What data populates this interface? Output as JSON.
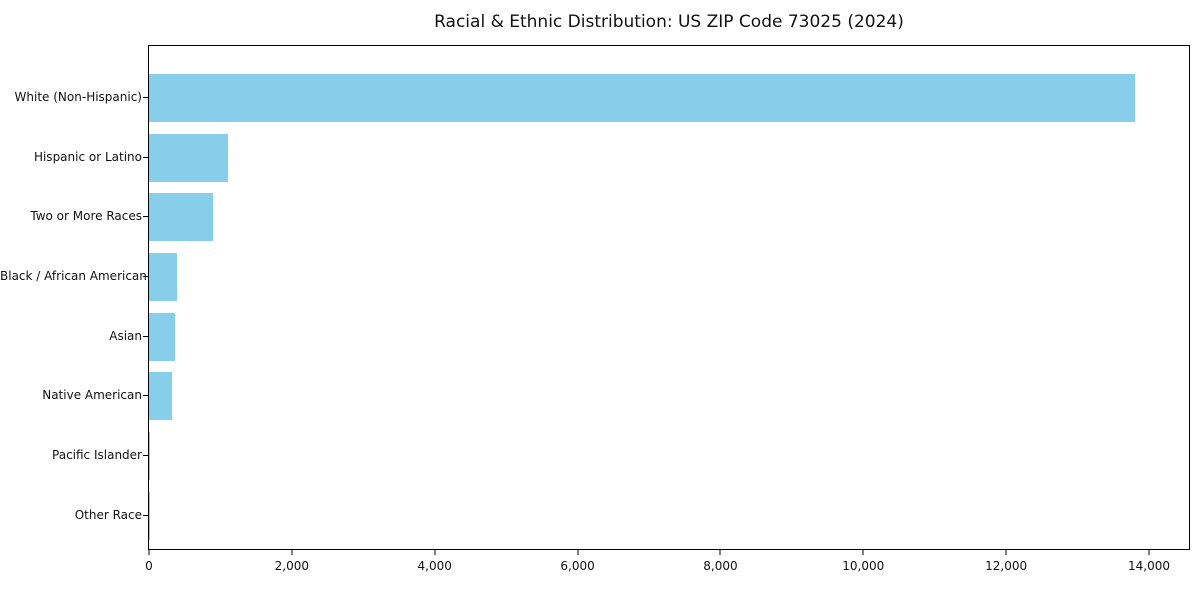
{
  "chart_data": {
    "type": "bar",
    "orientation": "horizontal",
    "title": "Racial & Ethnic Distribution: US ZIP Code 73025 (2024)",
    "categories": [
      "White (Non-Hispanic)",
      "Hispanic or Latino",
      "Two or More Races",
      "Black / African American",
      "Asian",
      "Native American",
      "Pacific Islander",
      "Other Race"
    ],
    "values": [
      13800,
      1100,
      890,
      385,
      365,
      320,
      10,
      5
    ],
    "xlabel": "",
    "ylabel": "",
    "xlim": [
      0,
      14560
    ],
    "xticks": [
      0,
      2000,
      4000,
      6000,
      8000,
      10000,
      12000,
      14000
    ],
    "xtick_labels": [
      "0",
      "2,000",
      "4,000",
      "6,000",
      "8,000",
      "10,000",
      "12,000",
      "14,000"
    ],
    "bar_color": "#87CEEB",
    "grid": false,
    "legend": null
  }
}
